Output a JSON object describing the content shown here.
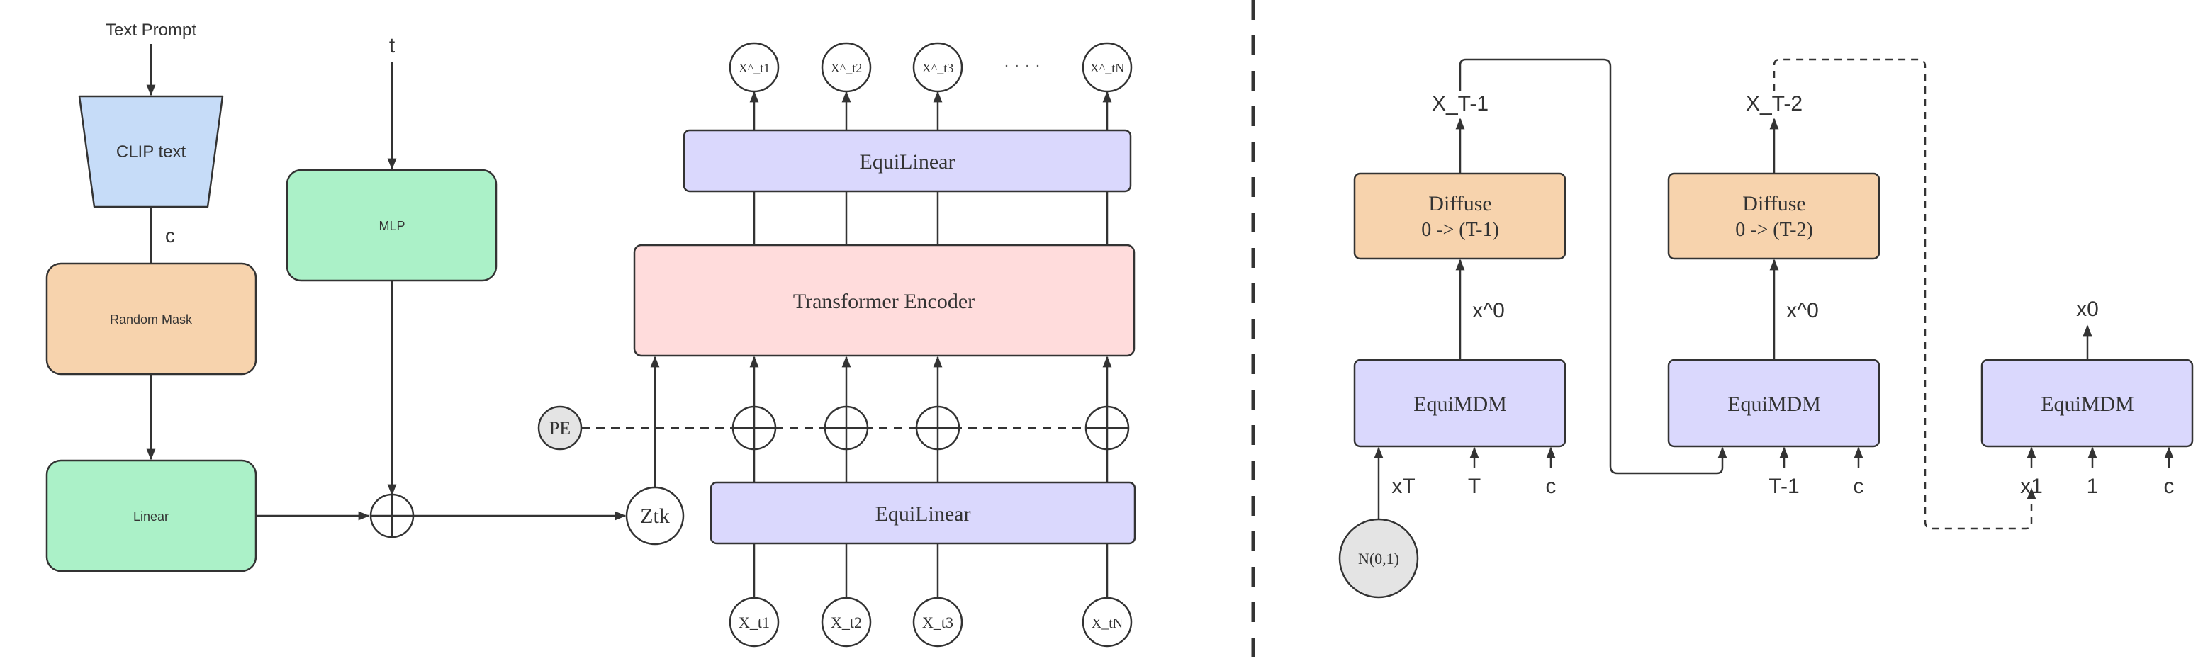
{
  "colors": {
    "clip": "#c6dcf8",
    "mlp": "#abf1c8",
    "mask": "#f7d3ad",
    "linear": "#abf1c8",
    "equi": "#dad8fd",
    "transformer": "#ffdcdc",
    "diffuse": "#f7d3ad",
    "pe": "#e4e4e4",
    "noise": "#e4e4e4",
    "stroke": "#333333"
  },
  "left": {
    "text_prompt": "Text Prompt",
    "clip_text": "CLIP text",
    "c_label": "c",
    "random_mask": "Random Mask",
    "linear": "Linear",
    "t_label": "t",
    "mlp": "MLP",
    "ztk": "Ztk",
    "pe": "PE",
    "equilinear_top": "EquiLinear",
    "equilinear_bottom": "EquiLinear",
    "transformer": "Transformer Encoder",
    "outputs": [
      "X^_t1",
      "X^_t2",
      "X^_t3",
      "X^_tN"
    ],
    "ellipsis": "· · · ·",
    "inputs": [
      "X_t1",
      "X_t2",
      "X_t3",
      "X_tN"
    ]
  },
  "right": {
    "stage1": {
      "output": "X_T-1",
      "diffuse_line1": "Diffuse",
      "diffuse_line2": "0 -> (T-1)",
      "x0": "x^0",
      "model": "EquiMDM",
      "inputs": [
        "xT",
        "T",
        "c"
      ]
    },
    "stage2": {
      "output": "X_T-2",
      "diffuse_line1": "Diffuse",
      "diffuse_line2": "0 -> (T-2)",
      "x0": "x^0",
      "model": "EquiMDM",
      "inputs": [
        "T-1",
        "c"
      ]
    },
    "stage3": {
      "output": "x0",
      "model": "EquiMDM",
      "inputs": [
        "x1",
        "1",
        "c"
      ]
    },
    "noise": "N(0,1)"
  }
}
